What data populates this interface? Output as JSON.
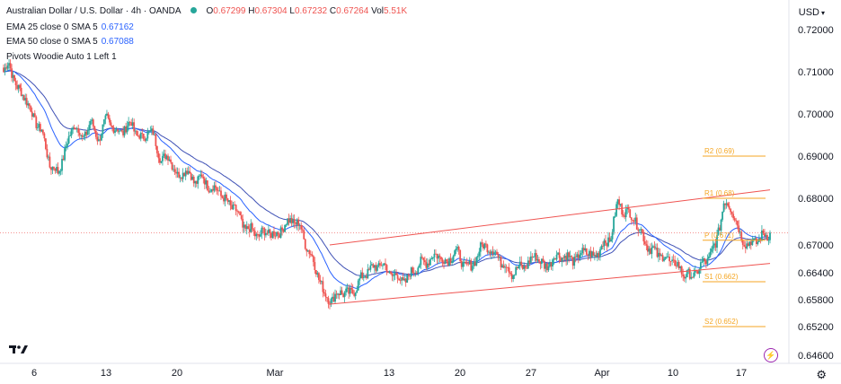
{
  "header": {
    "symbol": "Australian Dollar / U.S. Dollar · 4h · OANDA",
    "ohlc": {
      "o_label": "O",
      "o": "0.67299",
      "h_label": "H",
      "h": "0.67304",
      "l_label": "L",
      "l": "0.67232",
      "c_label": "C",
      "c": "0.67264",
      "vol_label": "Vol",
      "vol": "5.51K"
    },
    "indicators": [
      {
        "label": "EMA 25 close 0 SMA 5",
        "value": "0.67162"
      },
      {
        "label": "EMA 50 close 0 SMA 5",
        "value": "0.67088"
      },
      {
        "label": "Pivots Woodie Auto 1 Left 1",
        "value": ""
      }
    ]
  },
  "currency_label": "USD",
  "colors": {
    "up": "#26a69a",
    "down": "#ef5350",
    "ema25": "#2962ff",
    "ema50": "#3f51b5",
    "channel": "#ef5350",
    "pivot": "#f5a623",
    "grid": "#f0f3fa"
  },
  "chart_data": {
    "type": "candlestick",
    "y_ticks": [
      "0.72000",
      "0.71000",
      "0.70000",
      "0.69000",
      "0.68000",
      "0.67000",
      "0.66400",
      "0.65800",
      "0.65200",
      "0.64600"
    ],
    "x_ticks": [
      "6",
      "13",
      "20",
      "Mar",
      "13",
      "20",
      "27",
      "Apr",
      "10",
      "17"
    ],
    "pivots": [
      {
        "label": "R2 (0.69)",
        "value": 0.69
      },
      {
        "label": "R1 (0.68)",
        "value": 0.68
      },
      {
        "label": "P (0.671)",
        "value": 0.671
      },
      {
        "label": "S1 (0.662)",
        "value": 0.662
      },
      {
        "label": "S2 (0.652)",
        "value": 0.652
      }
    ],
    "last_price": 0.67264,
    "anchors": [
      [
        0,
        0.71
      ],
      [
        4,
        0.712
      ],
      [
        10,
        0.706
      ],
      [
        16,
        0.704
      ],
      [
        22,
        0.699
      ],
      [
        28,
        0.696
      ],
      [
        34,
        0.688
      ],
      [
        40,
        0.686
      ],
      [
        46,
        0.692
      ],
      [
        52,
        0.698
      ],
      [
        58,
        0.694
      ],
      [
        64,
        0.698
      ],
      [
        70,
        0.694
      ],
      [
        76,
        0.699
      ],
      [
        82,
        0.696
      ],
      [
        88,
        0.696
      ],
      [
        94,
        0.698
      ],
      [
        98,
        0.695
      ],
      [
        102,
        0.694
      ],
      [
        106,
        0.696
      ],
      [
        110,
        0.695
      ],
      [
        116,
        0.689
      ],
      [
        122,
        0.69
      ],
      [
        128,
        0.685
      ],
      [
        134,
        0.687
      ],
      [
        140,
        0.684
      ],
      [
        146,
        0.685
      ],
      [
        152,
        0.6825
      ],
      [
        158,
        0.682
      ],
      [
        164,
        0.679
      ],
      [
        170,
        0.678
      ],
      [
        176,
        0.674
      ],
      [
        182,
        0.673
      ],
      [
        188,
        0.672
      ],
      [
        194,
        0.673
      ],
      [
        200,
        0.672
      ],
      [
        206,
        0.674
      ],
      [
        212,
        0.6755
      ],
      [
        218,
        0.674
      ],
      [
        224,
        0.669
      ],
      [
        230,
        0.665
      ],
      [
        236,
        0.659
      ],
      [
        242,
        0.658
      ],
      [
        248,
        0.66
      ],
      [
        254,
        0.659
      ],
      [
        260,
        0.661
      ],
      [
        266,
        0.664
      ],
      [
        272,
        0.665
      ],
      [
        278,
        0.666
      ],
      [
        284,
        0.664
      ],
      [
        290,
        0.663
      ],
      [
        296,
        0.662
      ],
      [
        302,
        0.665
      ],
      [
        308,
        0.666
      ],
      [
        314,
        0.667
      ],
      [
        320,
        0.668
      ],
      [
        326,
        0.666
      ],
      [
        332,
        0.669
      ],
      [
        338,
        0.666
      ],
      [
        344,
        0.665
      ],
      [
        350,
        0.669
      ],
      [
        356,
        0.67
      ],
      [
        362,
        0.668
      ],
      [
        368,
        0.666
      ],
      [
        374,
        0.664
      ],
      [
        380,
        0.665
      ],
      [
        386,
        0.666
      ],
      [
        392,
        0.668
      ],
      [
        398,
        0.665
      ],
      [
        404,
        0.667
      ],
      [
        410,
        0.668
      ],
      [
        416,
        0.667
      ],
      [
        422,
        0.667
      ],
      [
        428,
        0.669
      ],
      [
        434,
        0.667
      ],
      [
        440,
        0.67
      ],
      [
        446,
        0.671
      ],
      [
        452,
        0.679
      ],
      [
        458,
        0.677
      ],
      [
        464,
        0.676
      ],
      [
        470,
        0.672
      ],
      [
        476,
        0.669
      ],
      [
        482,
        0.668
      ],
      [
        488,
        0.667
      ],
      [
        494,
        0.666
      ],
      [
        500,
        0.664
      ],
      [
        506,
        0.663
      ],
      [
        512,
        0.665
      ],
      [
        518,
        0.667
      ],
      [
        524,
        0.67
      ],
      [
        530,
        0.679
      ],
      [
        536,
        0.678
      ],
      [
        542,
        0.672
      ],
      [
        548,
        0.67
      ],
      [
        554,
        0.671
      ],
      [
        560,
        0.672
      ],
      [
        564,
        0.6726
      ]
    ],
    "candle_count": 565,
    "channel": {
      "upper": [
        [
          240,
          0.67
        ],
        [
          564,
          0.682
        ]
      ],
      "lower": [
        [
          240,
          0.657
        ],
        [
          564,
          0.666
        ]
      ]
    }
  }
}
